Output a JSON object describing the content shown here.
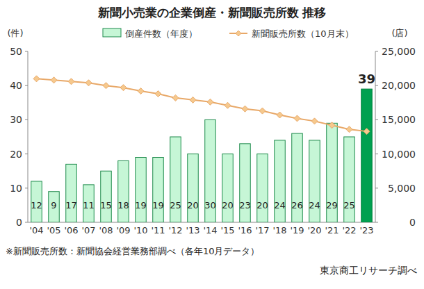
{
  "chart_data": {
    "type": "bar",
    "title": "新聞小売業の企業倒産・新聞販売所数 推移",
    "y_label": "(件)",
    "y2_label": "(店)",
    "note": "※新聞販売所数：新聞協会経営業務部調べ（各年10月データ）",
    "source": "東京商工リサーチ調べ",
    "categories": [
      "'04",
      "'05",
      "'06",
      "'07",
      "'08",
      "'09",
      "'10",
      "'11",
      "'12",
      "'13",
      "'14",
      "'15",
      "'16",
      "'17",
      "'18",
      "'19",
      "'20",
      "'21",
      "'22",
      "'23"
    ],
    "series": [
      {
        "name": "倒産件数（年度）",
        "type": "bar",
        "color": "#c6f6d6",
        "colors": [
          "#c6f6d6",
          "#c6f6d6",
          "#c6f6d6",
          "#c6f6d6",
          "#c6f6d6",
          "#c6f6d6",
          "#c6f6d6",
          "#c6f6d6",
          "#c6f6d6",
          "#c6f6d6",
          "#c6f6d6",
          "#c6f6d6",
          "#c6f6d6",
          "#c6f6d6",
          "#c6f6d6",
          "#c6f6d6",
          "#c6f6d6",
          "#c6f6d6",
          "#c6f6d6",
          "#00a050"
        ],
        "values": [
          12,
          9,
          17,
          11,
          15,
          18,
          19,
          19,
          25,
          20,
          30,
          20,
          23,
          20,
          24,
          26,
          24,
          29,
          25,
          39
        ]
      },
      {
        "name": "新聞販売所数（10月末）",
        "type": "line",
        "axis": "y2",
        "color": "#e8a868",
        "marker": "diamond",
        "values": [
          21000,
          20800,
          20600,
          20400,
          20000,
          19700,
          19200,
          18800,
          18200,
          17900,
          17600,
          17100,
          16600,
          16300,
          15700,
          15200,
          14800,
          14200,
          13600,
          13300
        ]
      }
    ],
    "ylim": [
      0,
      50
    ],
    "yticks": [
      0,
      10,
      20,
      30,
      40,
      50
    ],
    "y2lim": [
      0,
      25000
    ],
    "y2ticks": [
      0,
      {
        "value": 5000,
        "label": "5,000"
      },
      {
        "value": 10000,
        "label": "10,000"
      },
      {
        "value": 15000,
        "label": "15,000"
      },
      {
        "value": 20000,
        "label": "20,000"
      },
      {
        "value": 25000,
        "label": "25,000"
      }
    ],
    "grid": false,
    "data_labels": true
  }
}
